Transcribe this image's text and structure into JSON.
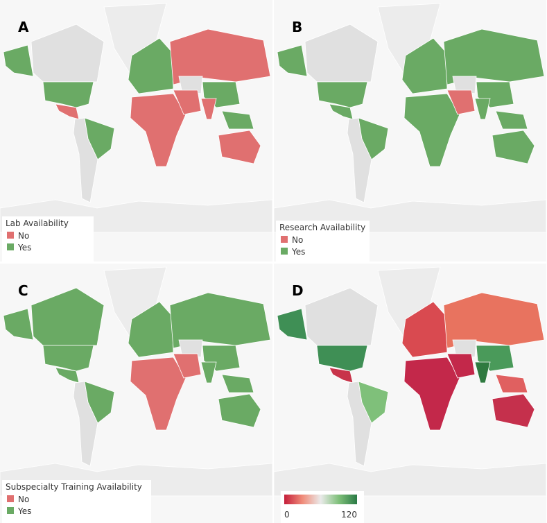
{
  "panels": [
    {
      "label": "A",
      "legend": {
        "title": "Lab Availability",
        "items": [
          {
            "label": "No",
            "color": "#e07070"
          },
          {
            "label": "Yes",
            "color": "#6aaa64"
          }
        ]
      }
    },
    {
      "label": "B",
      "legend": {
        "title": "Research Availability",
        "items": [
          {
            "label": "No",
            "color": "#e07070"
          },
          {
            "label": "Yes",
            "color": "#6aaa64"
          }
        ]
      }
    },
    {
      "label": "C",
      "legend": {
        "title": "Subspecialty Training Availability",
        "items": [
          {
            "label": "No",
            "color": "#e07070"
          },
          {
            "label": "Yes",
            "color": "#6aaa64"
          }
        ]
      }
    },
    {
      "label": "D",
      "legend": {
        "scale": {
          "min": 0,
          "max": 120,
          "colors": [
            "#c41e3a",
            "#f08c7a",
            "#eaeaea",
            "#7fc07a",
            "#2a7a45"
          ]
        }
      }
    }
  ]
}
